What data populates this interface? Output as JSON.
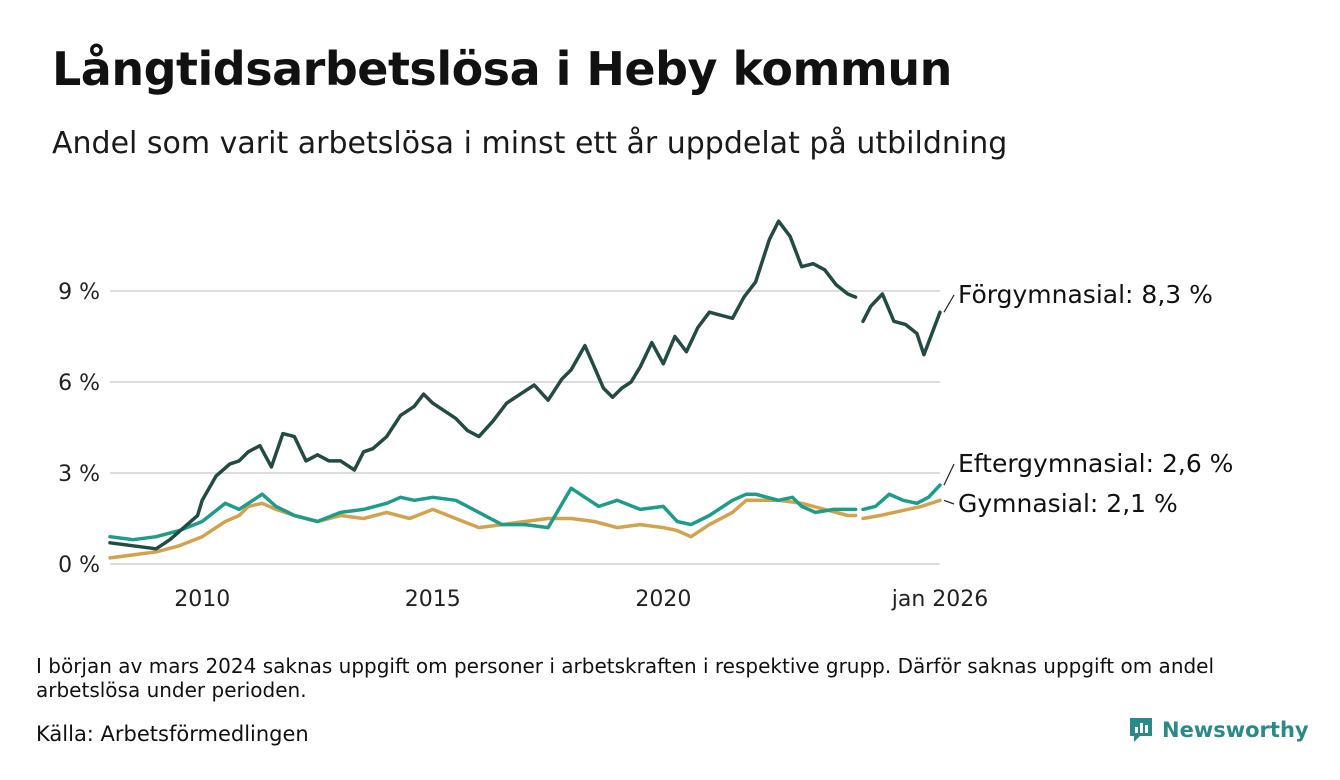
{
  "header": {
    "title": "Långtidsarbetslösa i Heby kommun",
    "subtitle": "Andel som varit arbetslösa i minst ett år uppdelat på utbildning"
  },
  "footer": {
    "note": "I början av mars 2024 saknas uppgift om personer i arbetskraften i respektive grupp. Därför saknas uppgift om andel arbetslösa under perioden.",
    "source": "Källa: Arbetsförmedlingen",
    "brand": "Newsworthy"
  },
  "colors": {
    "forgymnasial": "#234b44",
    "eftergymnasial": "#1e9c8a",
    "gymnasial": "#d2a24f",
    "grid": "#dddddd",
    "brand": "#2a8a8a"
  },
  "chart_data": {
    "type": "line",
    "title": "Långtidsarbetslösa i Heby kommun",
    "xlabel": "",
    "ylabel": "",
    "x_range": [
      2008.0,
      2026.0
    ],
    "ylim": [
      0,
      12
    ],
    "y_ticks": [
      0,
      3,
      6,
      9
    ],
    "y_tick_labels": [
      "0 %",
      "3 %",
      "6 %",
      "9 %"
    ],
    "x_ticks": [
      2010,
      2015,
      2020,
      2026
    ],
    "x_tick_labels": [
      "2010",
      "2015",
      "2020",
      "jan 2026"
    ],
    "gap": [
      2024.17,
      2024.33
    ],
    "series": [
      {
        "name": "Förgymnasial",
        "label": "Förgymnasial: 8,3 %",
        "color": "#234b44",
        "points": [
          [
            2008.0,
            0.7
          ],
          [
            2008.5,
            0.6
          ],
          [
            2009.0,
            0.5
          ],
          [
            2009.3,
            0.8
          ],
          [
            2009.6,
            1.2
          ],
          [
            2009.9,
            1.6
          ],
          [
            2010.0,
            2.1
          ],
          [
            2010.3,
            2.9
          ],
          [
            2010.6,
            3.3
          ],
          [
            2010.8,
            3.4
          ],
          [
            2011.0,
            3.7
          ],
          [
            2011.25,
            3.9
          ],
          [
            2011.5,
            3.2
          ],
          [
            2011.75,
            4.3
          ],
          [
            2012.0,
            4.2
          ],
          [
            2012.25,
            3.4
          ],
          [
            2012.5,
            3.6
          ],
          [
            2012.75,
            3.4
          ],
          [
            2013.0,
            3.4
          ],
          [
            2013.3,
            3.1
          ],
          [
            2013.5,
            3.7
          ],
          [
            2013.7,
            3.8
          ],
          [
            2014.0,
            4.2
          ],
          [
            2014.3,
            4.9
          ],
          [
            2014.6,
            5.2
          ],
          [
            2014.8,
            5.6
          ],
          [
            2015.0,
            5.3
          ],
          [
            2015.3,
            5.0
          ],
          [
            2015.5,
            4.8
          ],
          [
            2015.75,
            4.4
          ],
          [
            2016.0,
            4.2
          ],
          [
            2016.3,
            4.7
          ],
          [
            2016.6,
            5.3
          ],
          [
            2016.9,
            5.6
          ],
          [
            2017.2,
            5.9
          ],
          [
            2017.5,
            5.4
          ],
          [
            2017.8,
            6.1
          ],
          [
            2018.0,
            6.4
          ],
          [
            2018.3,
            7.2
          ],
          [
            2018.5,
            6.5
          ],
          [
            2018.7,
            5.8
          ],
          [
            2018.9,
            5.5
          ],
          [
            2019.1,
            5.8
          ],
          [
            2019.3,
            6.0
          ],
          [
            2019.5,
            6.5
          ],
          [
            2019.75,
            7.3
          ],
          [
            2020.0,
            6.6
          ],
          [
            2020.25,
            7.5
          ],
          [
            2020.5,
            7.0
          ],
          [
            2020.75,
            7.8
          ],
          [
            2021.0,
            8.3
          ],
          [
            2021.25,
            8.2
          ],
          [
            2021.5,
            8.1
          ],
          [
            2021.75,
            8.8
          ],
          [
            2022.0,
            9.3
          ],
          [
            2022.3,
            10.7
          ],
          [
            2022.5,
            11.3
          ],
          [
            2022.75,
            10.8
          ],
          [
            2023.0,
            9.8
          ],
          [
            2023.25,
            9.9
          ],
          [
            2023.5,
            9.7
          ],
          [
            2023.75,
            9.2
          ],
          [
            2024.0,
            8.9
          ],
          [
            2024.17,
            8.8
          ],
          [
            2024.33,
            8.0
          ],
          [
            2024.5,
            8.5
          ],
          [
            2024.75,
            8.9
          ],
          [
            2025.0,
            8.0
          ],
          [
            2025.25,
            7.9
          ],
          [
            2025.5,
            7.6
          ],
          [
            2025.65,
            6.9
          ],
          [
            2025.8,
            7.5
          ],
          [
            2026.0,
            8.3
          ]
        ]
      },
      {
        "name": "Eftergymnasial",
        "label": "Eftergymnasial: 2,6 %",
        "color": "#1e9c8a",
        "points": [
          [
            2008.0,
            0.9
          ],
          [
            2008.5,
            0.8
          ],
          [
            2009.0,
            0.9
          ],
          [
            2009.5,
            1.1
          ],
          [
            2010.0,
            1.4
          ],
          [
            2010.5,
            2.0
          ],
          [
            2010.8,
            1.8
          ],
          [
            2011.0,
            2.0
          ],
          [
            2011.3,
            2.3
          ],
          [
            2011.6,
            1.9
          ],
          [
            2012.0,
            1.6
          ],
          [
            2012.5,
            1.4
          ],
          [
            2013.0,
            1.7
          ],
          [
            2013.5,
            1.8
          ],
          [
            2014.0,
            2.0
          ],
          [
            2014.3,
            2.2
          ],
          [
            2014.6,
            2.1
          ],
          [
            2015.0,
            2.2
          ],
          [
            2015.5,
            2.1
          ],
          [
            2016.0,
            1.7
          ],
          [
            2016.5,
            1.3
          ],
          [
            2017.0,
            1.3
          ],
          [
            2017.5,
            1.2
          ],
          [
            2018.0,
            2.5
          ],
          [
            2018.3,
            2.2
          ],
          [
            2018.6,
            1.9
          ],
          [
            2019.0,
            2.1
          ],
          [
            2019.5,
            1.8
          ],
          [
            2020.0,
            1.9
          ],
          [
            2020.3,
            1.4
          ],
          [
            2020.6,
            1.3
          ],
          [
            2021.0,
            1.6
          ],
          [
            2021.5,
            2.1
          ],
          [
            2021.8,
            2.3
          ],
          [
            2022.0,
            2.3
          ],
          [
            2022.5,
            2.1
          ],
          [
            2022.8,
            2.2
          ],
          [
            2023.0,
            1.9
          ],
          [
            2023.3,
            1.7
          ],
          [
            2023.7,
            1.8
          ],
          [
            2024.0,
            1.8
          ],
          [
            2024.17,
            1.8
          ],
          [
            2024.33,
            1.8
          ],
          [
            2024.6,
            1.9
          ],
          [
            2024.9,
            2.3
          ],
          [
            2025.2,
            2.1
          ],
          [
            2025.5,
            2.0
          ],
          [
            2025.75,
            2.2
          ],
          [
            2026.0,
            2.6
          ]
        ]
      },
      {
        "name": "Gymnasial",
        "label": "Gymnasial: 2,1 %",
        "color": "#d2a24f",
        "points": [
          [
            2008.0,
            0.2
          ],
          [
            2008.5,
            0.3
          ],
          [
            2009.0,
            0.4
          ],
          [
            2009.5,
            0.6
          ],
          [
            2010.0,
            0.9
          ],
          [
            2010.5,
            1.4
          ],
          [
            2010.8,
            1.6
          ],
          [
            2011.0,
            1.9
          ],
          [
            2011.3,
            2.0
          ],
          [
            2011.6,
            1.8
          ],
          [
            2012.0,
            1.6
          ],
          [
            2012.5,
            1.4
          ],
          [
            2013.0,
            1.6
          ],
          [
            2013.5,
            1.5
          ],
          [
            2014.0,
            1.7
          ],
          [
            2014.5,
            1.5
          ],
          [
            2015.0,
            1.8
          ],
          [
            2015.5,
            1.5
          ],
          [
            2016.0,
            1.2
          ],
          [
            2016.5,
            1.3
          ],
          [
            2017.0,
            1.4
          ],
          [
            2017.5,
            1.5
          ],
          [
            2018.0,
            1.5
          ],
          [
            2018.5,
            1.4
          ],
          [
            2019.0,
            1.2
          ],
          [
            2019.5,
            1.3
          ],
          [
            2020.0,
            1.2
          ],
          [
            2020.3,
            1.1
          ],
          [
            2020.6,
            0.9
          ],
          [
            2021.0,
            1.3
          ],
          [
            2021.5,
            1.7
          ],
          [
            2021.8,
            2.1
          ],
          [
            2022.0,
            2.1
          ],
          [
            2022.5,
            2.1
          ],
          [
            2023.0,
            2.0
          ],
          [
            2023.5,
            1.8
          ],
          [
            2024.0,
            1.6
          ],
          [
            2024.17,
            1.6
          ],
          [
            2024.33,
            1.5
          ],
          [
            2024.7,
            1.6
          ],
          [
            2025.0,
            1.7
          ],
          [
            2025.3,
            1.8
          ],
          [
            2025.6,
            1.9
          ],
          [
            2026.0,
            2.1
          ]
        ]
      }
    ]
  }
}
